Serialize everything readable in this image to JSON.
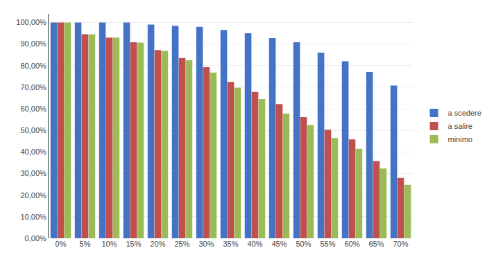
{
  "chart_data": {
    "type": "bar",
    "categories": [
      "0%",
      "5%",
      "10%",
      "15%",
      "20%",
      "25%",
      "30%",
      "35%",
      "40%",
      "45%",
      "50%",
      "55%",
      "60%",
      "65%",
      "70%"
    ],
    "series": [
      {
        "name": "a scedere",
        "color": "#4472C4",
        "values": [
          1.0,
          1.0,
          1.0,
          1.0,
          0.99,
          0.985,
          0.98,
          0.965,
          0.95,
          0.928,
          0.908,
          0.86,
          0.82,
          0.77,
          0.708
        ]
      },
      {
        "name": "a salire",
        "color": "#C0504D",
        "values": [
          1.0,
          0.945,
          0.93,
          0.908,
          0.872,
          0.835,
          0.793,
          0.725,
          0.678,
          0.622,
          0.562,
          0.503,
          0.458,
          0.358,
          0.28
        ]
      },
      {
        "name": "minimo",
        "color": "#9BBB59",
        "values": [
          1.0,
          0.945,
          0.93,
          0.907,
          0.868,
          0.825,
          0.768,
          0.698,
          0.645,
          0.578,
          0.525,
          0.465,
          0.415,
          0.323,
          0.248
        ]
      }
    ],
    "ylim": [
      0,
      1.04
    ],
    "yticks": [
      {
        "value": 0.0,
        "label": "0,00%"
      },
      {
        "value": 0.1,
        "label": "10,00%"
      },
      {
        "value": 0.2,
        "label": "20,00%"
      },
      {
        "value": 0.3,
        "label": "30,00%"
      },
      {
        "value": 0.4,
        "label": "40,00%"
      },
      {
        "value": 0.5,
        "label": "50,00%"
      },
      {
        "value": 0.6,
        "label": "60,00%"
      },
      {
        "value": 0.7,
        "label": "70,00%"
      },
      {
        "value": 0.8,
        "label": "80,00%"
      },
      {
        "value": 0.9,
        "label": "90,00%"
      },
      {
        "value": 1.0,
        "label": "100,00%"
      }
    ],
    "grid": true,
    "legend": "right"
  }
}
